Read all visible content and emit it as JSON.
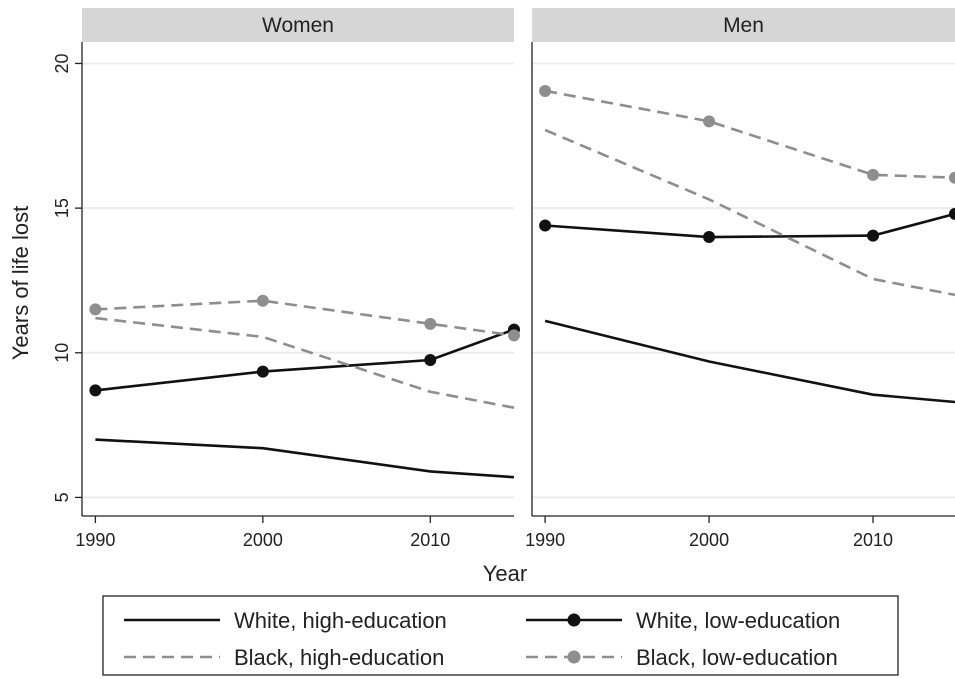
{
  "chart_data": {
    "type": "line",
    "panels": [
      "Women",
      "Men"
    ],
    "xlabel": "Year",
    "ylabel": "Years of life lost",
    "x_ticks": [
      1990,
      2000,
      2010
    ],
    "y_ticks": [
      5,
      10,
      15,
      20
    ],
    "xlim": [
      1989.2,
      2015
    ],
    "ylim": [
      4.6,
      20.5
    ],
    "grid": true,
    "legend_position": "bottom",
    "series": [
      {
        "name": "White, high-education",
        "color": "#111111",
        "dashed": false,
        "markers": false,
        "women": [
          [
            1990,
            7.0
          ],
          [
            2000,
            6.7
          ],
          [
            2010,
            5.9
          ],
          [
            2015,
            5.7
          ]
        ],
        "men": [
          [
            1990,
            11.1
          ],
          [
            2000,
            9.7
          ],
          [
            2010,
            8.55
          ],
          [
            2015,
            8.3
          ]
        ]
      },
      {
        "name": "White, low-education",
        "color": "#111111",
        "dashed": false,
        "markers": true,
        "women": [
          [
            1990,
            8.7
          ],
          [
            2000,
            9.35
          ],
          [
            2010,
            9.75
          ],
          [
            2015,
            10.8
          ]
        ],
        "men": [
          [
            1990,
            14.4
          ],
          [
            2000,
            14.0
          ],
          [
            2010,
            14.05
          ],
          [
            2015,
            14.8
          ]
        ]
      },
      {
        "name": "Black, high-education",
        "color": "#8e8e8e",
        "dashed": true,
        "markers": false,
        "women": [
          [
            1990,
            11.2
          ],
          [
            2000,
            10.55
          ],
          [
            2010,
            8.65
          ],
          [
            2015,
            8.1
          ]
        ],
        "men": [
          [
            1990,
            17.7
          ],
          [
            2000,
            15.3
          ],
          [
            2010,
            12.55
          ],
          [
            2015,
            12.0
          ]
        ]
      },
      {
        "name": "Black, low-education",
        "color": "#8e8e8e",
        "dashed": true,
        "markers": true,
        "women": [
          [
            1990,
            11.5
          ],
          [
            2000,
            11.8
          ],
          [
            2010,
            11.0
          ],
          [
            2015,
            10.6
          ]
        ],
        "men": [
          [
            1990,
            19.05
          ],
          [
            2000,
            18.0
          ],
          [
            2010,
            16.15
          ],
          [
            2015,
            16.05
          ]
        ]
      }
    ]
  }
}
